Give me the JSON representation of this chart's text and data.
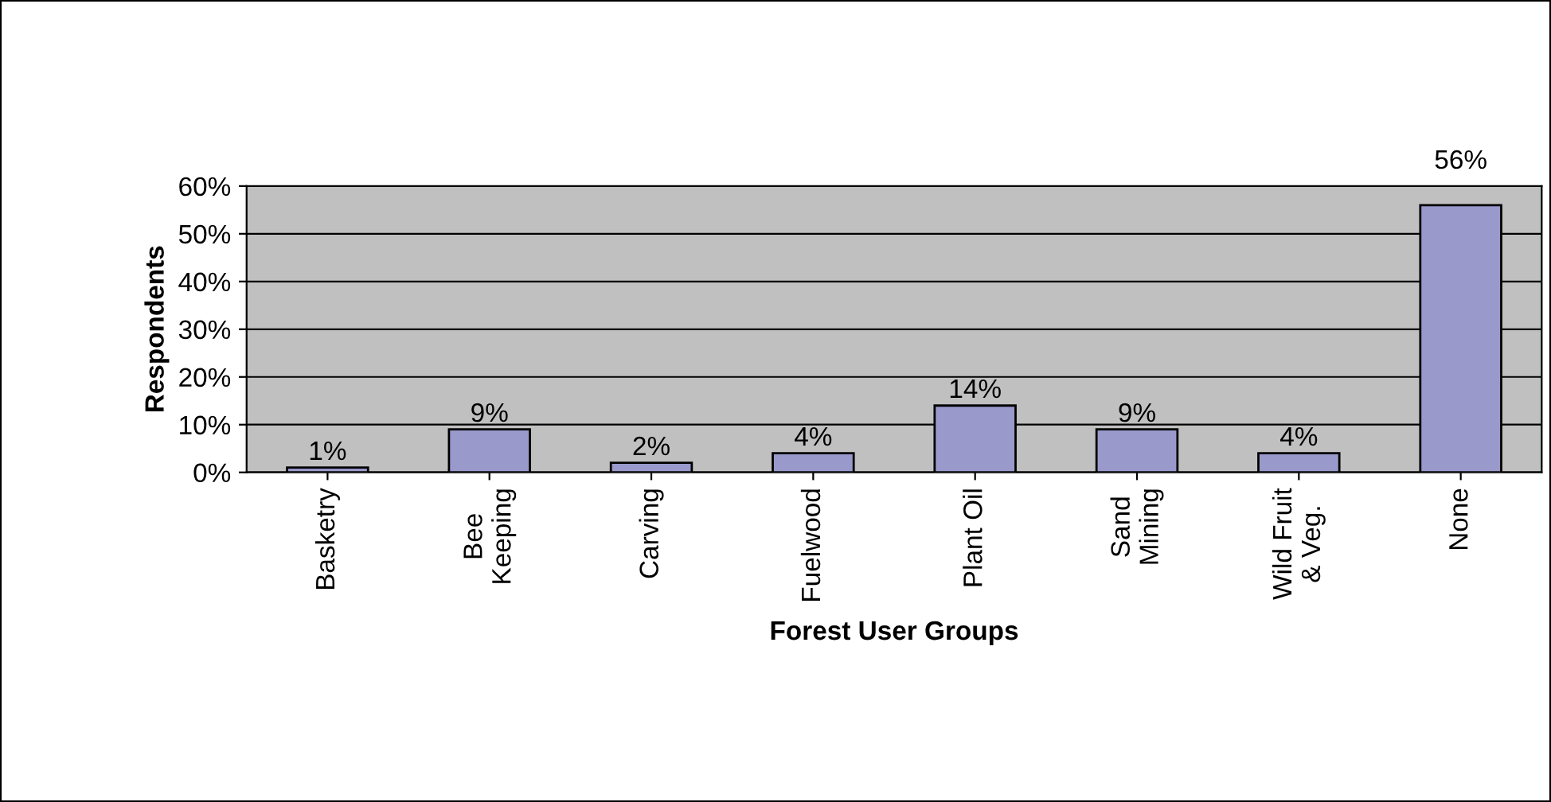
{
  "chart_data": {
    "type": "bar",
    "xlabel": "Forest User Groups",
    "ylabel": "Respondents",
    "categories": [
      "Basketry",
      "Bee\nKeeping",
      "Carving",
      "Fuelwood",
      "Plant Oil",
      "Sand\nMining",
      "Wild Fruit\n& Veg.",
      "None"
    ],
    "values": [
      1,
      9,
      2,
      4,
      14,
      9,
      4,
      56
    ],
    "value_labels": [
      "1%",
      "9%",
      "2%",
      "4%",
      "14%",
      "9%",
      "4%",
      "56%"
    ],
    "color": "#9999cc",
    "ylim": [
      0,
      60
    ],
    "yticks": [
      {
        "value": 0,
        "label": "0%"
      },
      {
        "value": 10,
        "label": "10%"
      },
      {
        "value": 20,
        "label": "20%"
      },
      {
        "value": 30,
        "label": "30%"
      },
      {
        "value": 40,
        "label": "40%"
      },
      {
        "value": 50,
        "label": "50%"
      },
      {
        "value": 60,
        "label": "60%"
      }
    ],
    "grid": "y"
  }
}
